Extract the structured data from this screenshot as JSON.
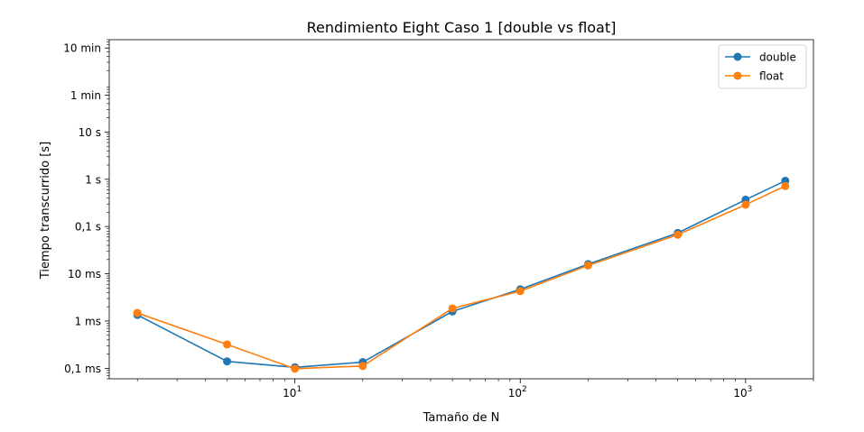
{
  "chart_data": {
    "type": "line",
    "title": "Rendimiento Eight Caso 1 [double vs float]",
    "xlabel": "Tamaño de N",
    "ylabel": "Tiempo transcurrido [s]",
    "xscale": "log",
    "yscale": "log",
    "xlim": [
      1.5,
      2000
    ],
    "ylim": [
      6e-05,
      900
    ],
    "x": [
      2,
      5,
      10,
      20,
      50,
      100,
      200,
      500,
      1000,
      1500
    ],
    "x_ticks": [
      {
        "value": 10,
        "base": "10",
        "exp": "1"
      },
      {
        "value": 100,
        "base": "10",
        "exp": "2"
      },
      {
        "value": 1000,
        "base": "10",
        "exp": "3"
      }
    ],
    "y_ticks": [
      {
        "value": 0.0001,
        "label": "0,1 ms"
      },
      {
        "value": 0.001,
        "label": "1 ms"
      },
      {
        "value": 0.01,
        "label": "10 ms"
      },
      {
        "value": 0.1,
        "label": "0,1 s"
      },
      {
        "value": 1,
        "label": "1 s"
      },
      {
        "value": 10,
        "label": "10 s"
      },
      {
        "value": 60,
        "label": "1 min"
      },
      {
        "value": 600,
        "label": "10 min"
      }
    ],
    "series": [
      {
        "name": "double",
        "color": "#1f77b4",
        "values": [
          0.00135,
          0.00014,
          0.000105,
          0.000135,
          0.0016,
          0.0047,
          0.016,
          0.073,
          0.37,
          0.93
        ]
      },
      {
        "name": "float",
        "color": "#ff7f0e",
        "values": [
          0.00148,
          0.00032,
          9.8e-05,
          0.000112,
          0.00185,
          0.0043,
          0.015,
          0.067,
          0.29,
          0.72
        ]
      }
    ],
    "grid": false,
    "legend_position": "top-right"
  }
}
